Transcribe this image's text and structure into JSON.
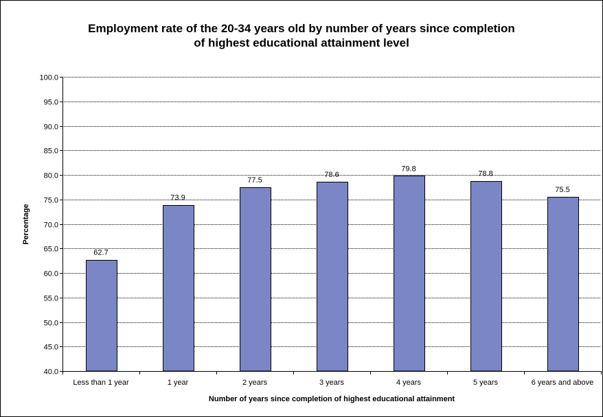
{
  "chart_data": {
    "type": "bar",
    "title_line1": "Employment rate of the 20-34 years old by number of years since completion",
    "title_line2": "of highest educational attainment level",
    "xlabel": "Number of years since completion of highest educational attainment",
    "ylabel": "Percentage",
    "ylim": [
      40,
      100
    ],
    "yticks": [
      "40.0",
      "45.0",
      "50.0",
      "55.0",
      "60.0",
      "65.0",
      "70.0",
      "75.0",
      "80.0",
      "85.0",
      "90.0",
      "95.0",
      "100.0"
    ],
    "categories": [
      "Less than 1 year",
      "1 year",
      "2 years",
      "3 years",
      "4 years",
      "5 years",
      "6 years and above"
    ],
    "values": [
      62.7,
      73.9,
      77.5,
      78.6,
      79.8,
      78.8,
      75.5
    ],
    "value_labels": [
      "62.7",
      "73.9",
      "77.5",
      "78.6",
      "79.8",
      "78.8",
      "75.5"
    ],
    "grid": true,
    "colors": {
      "bar": "#7b86c6",
      "bar_border": "#000000",
      "grid": "#000000"
    }
  }
}
